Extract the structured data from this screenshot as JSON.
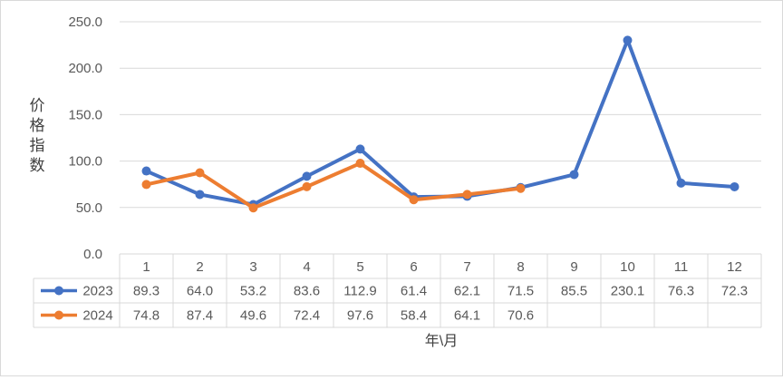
{
  "chart_data": {
    "type": "line",
    "title": "",
    "ylabel": "价格指数",
    "xlabel": "年\\月",
    "ylim": [
      0,
      250
    ],
    "y_ticks": [
      "0.0",
      "50.0",
      "100.0",
      "150.0",
      "200.0",
      "250.0"
    ],
    "categories": [
      "1",
      "2",
      "3",
      "4",
      "5",
      "6",
      "7",
      "8",
      "9",
      "10",
      "11",
      "12"
    ],
    "grid": true,
    "legend": "data-table",
    "series": [
      {
        "name": "2023",
        "color": "#4472c4",
        "values": [
          89.3,
          64.0,
          53.2,
          83.6,
          112.9,
          61.4,
          62.1,
          71.5,
          85.5,
          230.1,
          76.3,
          72.3
        ],
        "labels": [
          "89.3",
          "64.0",
          "53.2",
          "83.6",
          "112.9",
          "61.4",
          "62.1",
          "71.5",
          "85.5",
          "230.1",
          "76.3",
          "72.3"
        ]
      },
      {
        "name": "2024",
        "color": "#ed7d31",
        "values": [
          74.8,
          87.4,
          49.6,
          72.4,
          97.6,
          58.4,
          64.1,
          70.6,
          null,
          null,
          null,
          null
        ],
        "labels": [
          "74.8",
          "87.4",
          "49.6",
          "72.4",
          "97.6",
          "58.4",
          "64.1",
          "70.6",
          "",
          "",
          "",
          ""
        ]
      }
    ]
  }
}
